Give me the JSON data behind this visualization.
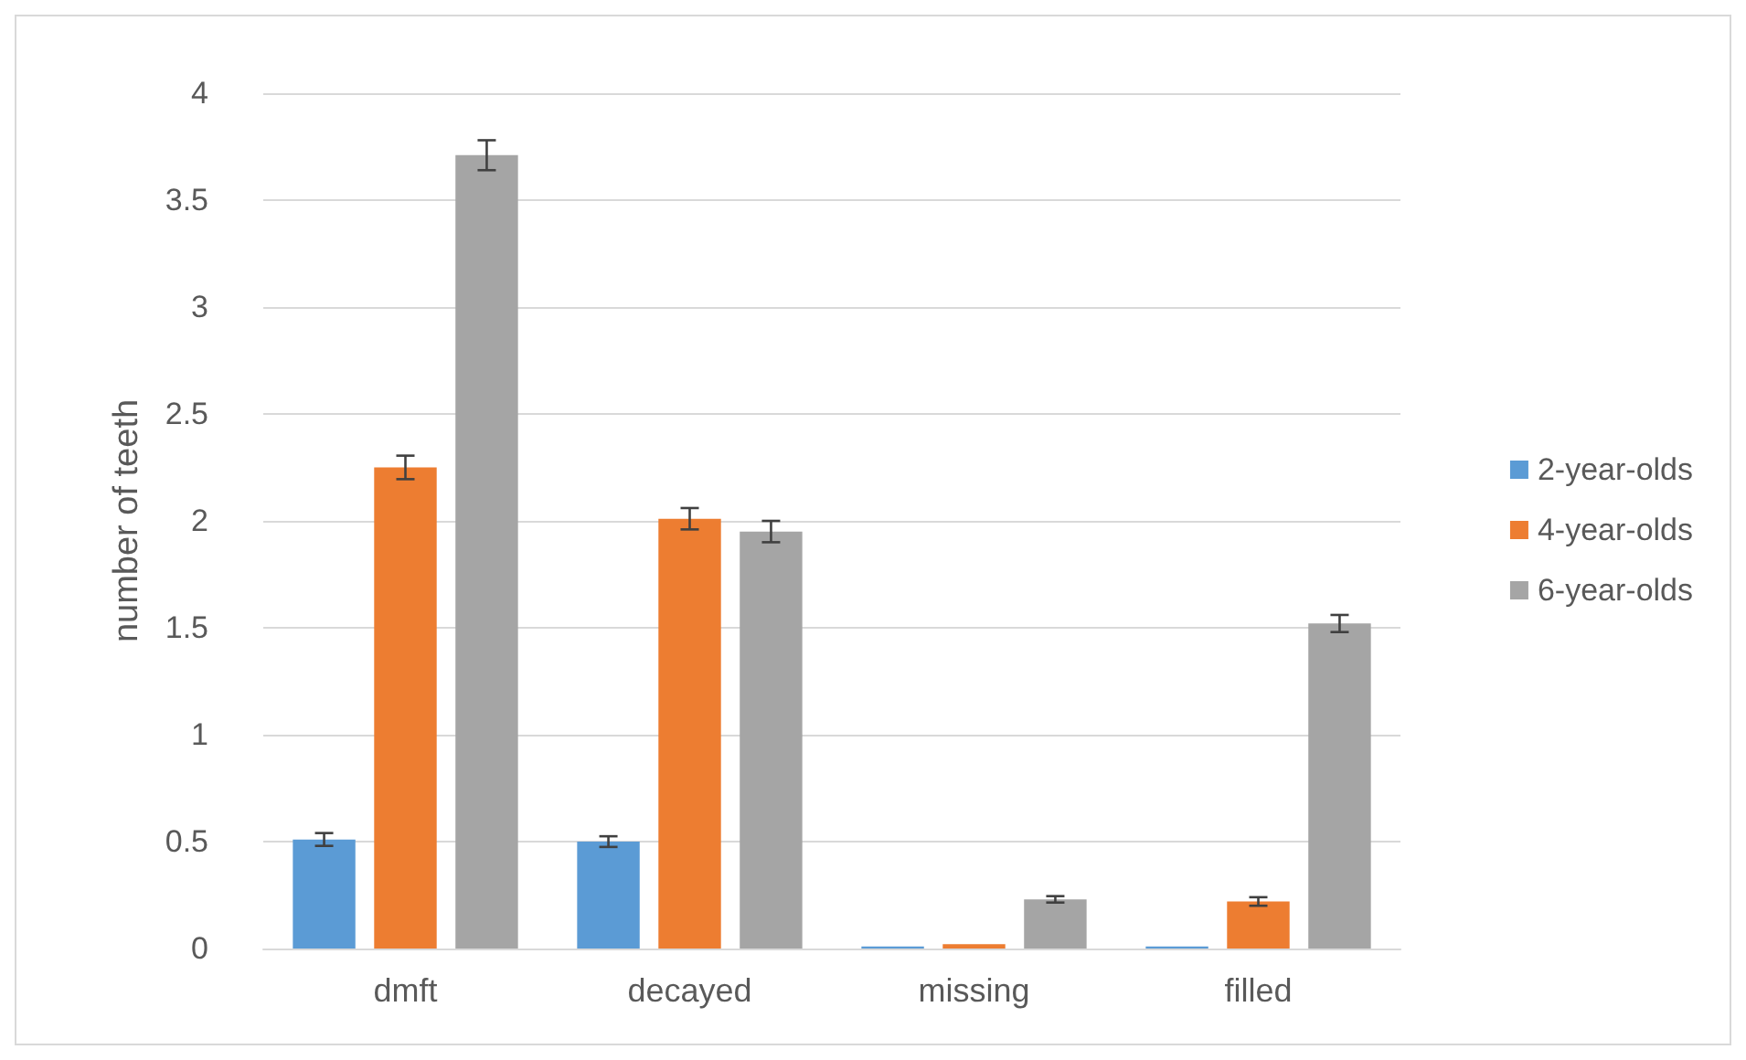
{
  "chart_data": {
    "type": "bar",
    "ylabel": "number of teeth",
    "categories": [
      "dmft",
      "decayed",
      "missing",
      "filled"
    ],
    "series": [
      {
        "name": "2-year-olds",
        "color": "#5b9bd5",
        "values": [
          0.51,
          0.5,
          0.01,
          0.01
        ],
        "errors": [
          0.03,
          0.025,
          null,
          null
        ]
      },
      {
        "name": "4-year-olds",
        "color": "#ed7d31",
        "values": [
          2.25,
          2.01,
          0.02,
          0.22
        ],
        "errors": [
          0.055,
          0.05,
          null,
          0.02
        ]
      },
      {
        "name": "6-year-olds",
        "color": "#a5a5a5",
        "values": [
          3.71,
          1.95,
          0.23,
          1.52
        ],
        "errors": [
          0.07,
          0.05,
          0.015,
          0.04
        ]
      }
    ],
    "ylim": [
      0,
      4
    ],
    "yticks": [
      0,
      0.5,
      1,
      1.5,
      2,
      2.5,
      3,
      3.5,
      4
    ],
    "grid": "y",
    "legend": "right"
  }
}
